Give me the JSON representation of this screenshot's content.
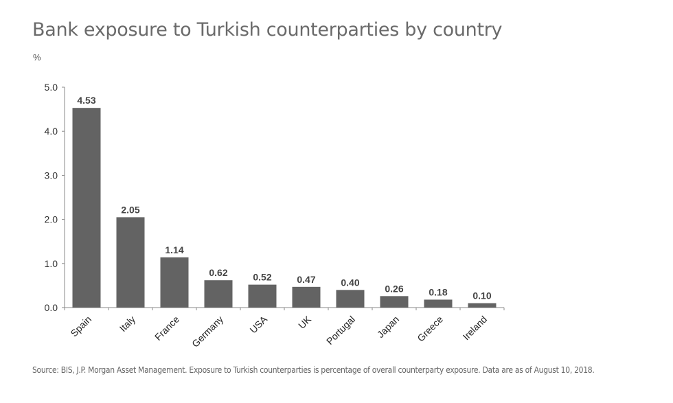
{
  "chart_data": {
    "type": "bar",
    "title": "Bank exposure to Turkish counterparties by country",
    "ylabel": "%",
    "xlabel": "",
    "categories": [
      "Spain",
      "Italy",
      "France",
      "Germany",
      "USA",
      "UK",
      "Portugal",
      "Japan",
      "Greece",
      "Ireland"
    ],
    "values": [
      4.53,
      2.05,
      1.14,
      0.62,
      0.52,
      0.47,
      0.4,
      0.26,
      0.18,
      0.1
    ],
    "data_labels": [
      "4.53",
      "2.05",
      "1.14",
      "0.62",
      "0.52",
      "0.47",
      "0.40",
      "0.26",
      "0.18",
      "0.10"
    ],
    "ylim": [
      0,
      5
    ],
    "yticks": [
      "0.0",
      "1.0",
      "2.0",
      "3.0",
      "4.0",
      "5.0"
    ],
    "grid": false,
    "bar_color": "#636363",
    "source": "Source: BIS, J.P. Morgan Asset Management. Exposure to Turkish counterparties is percentage of overall counterparty exposure. Data are as of August 10, 2018."
  }
}
